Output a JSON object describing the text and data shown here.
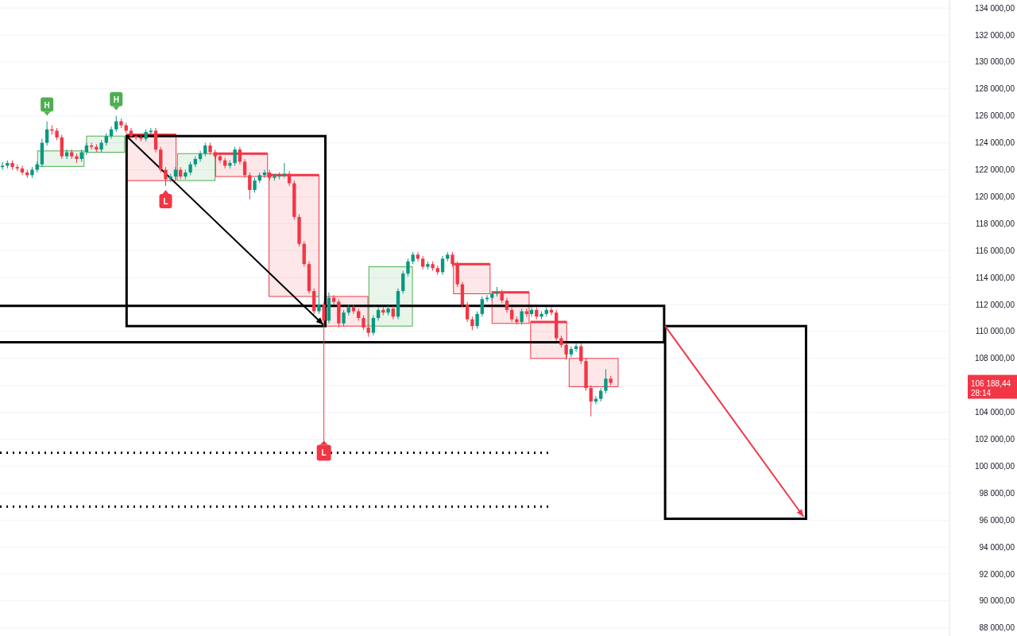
{
  "chart_data": {
    "type": "candlestick",
    "categories": [
      null,
      null,
      null,
      null,
      null,
      null,
      null,
      null,
      null,
      null,
      null,
      null,
      null,
      null,
      null,
      null,
      null,
      null,
      null,
      null,
      null,
      null,
      null,
      null,
      null,
      null,
      null,
      null,
      null,
      null,
      null,
      null,
      null,
      null,
      null,
      null,
      null,
      null,
      null,
      null,
      null,
      null,
      null,
      null,
      null,
      null,
      null,
      null,
      null,
      null,
      null,
      null,
      null,
      null,
      null,
      null,
      null,
      null,
      null,
      null,
      null,
      null,
      null,
      null,
      null,
      null,
      null,
      null,
      null,
      null,
      null,
      null,
      null,
      null,
      null,
      null,
      null,
      null,
      null,
      null,
      null,
      null,
      null,
      null,
      null,
      null,
      null,
      null,
      null,
      null,
      null,
      null,
      null,
      null,
      null,
      null,
      null,
      null,
      null,
      null,
      null,
      null,
      null,
      null,
      null,
      null,
      null,
      null,
      null,
      null,
      null,
      null,
      null,
      null,
      null,
      null,
      null,
      null,
      null,
      null,
      null,
      null,
      null,
      null,
      null,
      null,
      null,
      null,
      null,
      null,
      null,
      null,
      null,
      null,
      null,
      null,
      null,
      null,
      null,
      null,
      null,
      null,
      null,
      null,
      null,
      null,
      null,
      null,
      null,
      null,
      null,
      null,
      null,
      null,
      null,
      null,
      null,
      null,
      null,
      null,
      null,
      null,
      null,
      null,
      null,
      null,
      null,
      null,
      null,
      null,
      null,
      null,
      null,
      null,
      null,
      null,
      null,
      null,
      null,
      null,
      null,
      null,
      null,
      null,
      null,
      null,
      null,
      null,
      null,
      null,
      null,
      null
    ],
    "ohlc": [
      [
        122200,
        122600,
        122000,
        122300
      ],
      [
        122300,
        122700,
        122100,
        122500
      ],
      [
        122500,
        122700,
        122000,
        122200
      ],
      [
        122200,
        122400,
        121900,
        122100
      ],
      [
        122100,
        122300,
        121600,
        121800
      ],
      [
        121800,
        122000,
        121400,
        121600
      ],
      [
        121600,
        122200,
        121400,
        122000
      ],
      [
        122000,
        122600,
        121800,
        122400
      ],
      [
        122400,
        124300,
        122200,
        124000
      ],
      [
        124000,
        125600,
        123800,
        125000
      ],
      [
        125000,
        125300,
        124600,
        124900
      ],
      [
        124900,
        125100,
        124200,
        124400
      ],
      [
        124400,
        124600,
        122800,
        123000
      ],
      [
        123000,
        123500,
        122800,
        123300
      ],
      [
        123300,
        123500,
        122800,
        123000
      ],
      [
        123000,
        123200,
        122500,
        122800
      ],
      [
        122800,
        123500,
        122600,
        123300
      ],
      [
        123300,
        124000,
        123100,
        123800
      ],
      [
        123800,
        124000,
        123500,
        123700
      ],
      [
        123700,
        123900,
        123300,
        123500
      ],
      [
        123500,
        124200,
        123300,
        124000
      ],
      [
        124000,
        124700,
        123800,
        124500
      ],
      [
        124500,
        125200,
        124300,
        125000
      ],
      [
        125000,
        126000,
        124800,
        125600
      ],
      [
        125600,
        125800,
        125100,
        125300
      ],
      [
        125300,
        125500,
        124700,
        124900
      ],
      [
        124900,
        125100,
        124300,
        124500
      ],
      [
        124500,
        124700,
        124200,
        124400
      ],
      [
        124400,
        124600,
        124100,
        124300
      ],
      [
        124300,
        125000,
        124100,
        124800
      ],
      [
        124800,
        125100,
        124600,
        124900
      ],
      [
        124900,
        125100,
        123300,
        123500
      ],
      [
        123500,
        123700,
        121800,
        122000
      ],
      [
        122000,
        122200,
        120800,
        121300
      ],
      [
        121300,
        121700,
        121100,
        121500
      ],
      [
        121500,
        122200,
        121300,
        122000
      ],
      [
        122000,
        122200,
        121300,
        121500
      ],
      [
        121500,
        122000,
        121300,
        121800
      ],
      [
        121800,
        122600,
        121600,
        122400
      ],
      [
        122400,
        123000,
        122200,
        122800
      ],
      [
        122800,
        123400,
        122600,
        123200
      ],
      [
        123200,
        124000,
        123000,
        123800
      ],
      [
        123800,
        124000,
        123100,
        123300
      ],
      [
        123300,
        123500,
        122800,
        123000
      ],
      [
        123000,
        123200,
        122500,
        122700
      ],
      [
        122700,
        122900,
        122100,
        122300
      ],
      [
        122300,
        122700,
        122100,
        122500
      ],
      [
        122500,
        123700,
        122300,
        123500
      ],
      [
        123500,
        123700,
        122400,
        122600
      ],
      [
        122600,
        122800,
        121400,
        121600
      ],
      [
        121600,
        121800,
        119800,
        120500
      ],
      [
        120500,
        121400,
        120300,
        121200
      ],
      [
        121200,
        121800,
        121000,
        121600
      ],
      [
        121600,
        122000,
        121400,
        121800
      ],
      [
        121800,
        122000,
        121200,
        121400
      ],
      [
        121400,
        121700,
        121200,
        121500
      ],
      [
        121500,
        121800,
        121300,
        121600
      ],
      [
        121600,
        122500,
        121400,
        121700
      ],
      [
        121700,
        121900,
        120800,
        121000
      ],
      [
        121000,
        121200,
        118300,
        118500
      ],
      [
        118500,
        118700,
        116300,
        116500
      ],
      [
        116500,
        116700,
        114800,
        115000
      ],
      [
        115000,
        115200,
        112800,
        113000
      ],
      [
        113000,
        113200,
        111300,
        111500
      ],
      [
        111500,
        112900,
        111300,
        112000
      ],
      [
        112000,
        112200,
        110600,
        110800
      ],
      [
        110800,
        112900,
        110600,
        112500
      ],
      [
        112500,
        112700,
        112000,
        112200
      ],
      [
        112200,
        112400,
        110300,
        110600
      ],
      [
        110600,
        111600,
        110400,
        111400
      ],
      [
        111400,
        112000,
        111200,
        111800
      ],
      [
        111800,
        112000,
        111300,
        111500
      ],
      [
        111500,
        111700,
        110800,
        111000
      ],
      [
        111000,
        111200,
        110100,
        110300
      ],
      [
        110300,
        110500,
        109600,
        109900
      ],
      [
        109900,
        111200,
        109700,
        111000
      ],
      [
        111000,
        111800,
        110800,
        111600
      ],
      [
        111600,
        111800,
        111200,
        111400
      ],
      [
        111400,
        111900,
        111200,
        111700
      ],
      [
        111700,
        111900,
        110900,
        111100
      ],
      [
        111100,
        113200,
        110900,
        113000
      ],
      [
        113000,
        114500,
        112800,
        114300
      ],
      [
        114300,
        115400,
        114100,
        115200
      ],
      [
        115200,
        115900,
        115000,
        115700
      ],
      [
        115700,
        115900,
        115200,
        115400
      ],
      [
        115400,
        115600,
        114600,
        114800
      ],
      [
        114800,
        115200,
        114600,
        115000
      ],
      [
        115000,
        115200,
        114500,
        114700
      ],
      [
        114700,
        114900,
        114200,
        114400
      ],
      [
        114400,
        115600,
        114200,
        115400
      ],
      [
        115400,
        115900,
        115200,
        115700
      ],
      [
        115700,
        115900,
        114800,
        115000
      ],
      [
        115000,
        115200,
        113300,
        113500
      ],
      [
        113500,
        113700,
        111800,
        112000
      ],
      [
        112000,
        112200,
        110700,
        110900
      ],
      [
        110900,
        111100,
        110100,
        110400
      ],
      [
        110400,
        111500,
        110200,
        111300
      ],
      [
        111300,
        112600,
        111100,
        112400
      ],
      [
        112400,
        112700,
        112200,
        112500
      ],
      [
        112500,
        113000,
        112300,
        112800
      ],
      [
        112800,
        113300,
        112600,
        112900
      ],
      [
        112900,
        113100,
        112100,
        112300
      ],
      [
        112300,
        112500,
        111400,
        111600
      ],
      [
        111600,
        111800,
        110700,
        110900
      ],
      [
        110900,
        111100,
        110500,
        110700
      ],
      [
        110700,
        111700,
        110500,
        111500
      ],
      [
        111500,
        111700,
        111100,
        111300
      ],
      [
        111300,
        111800,
        111100,
        111600
      ],
      [
        111600,
        111800,
        110900,
        111100
      ],
      [
        111100,
        111500,
        110900,
        111300
      ],
      [
        111300,
        111800,
        111100,
        111600
      ],
      [
        111600,
        111800,
        111200,
        111400
      ],
      [
        111400,
        111600,
        109300,
        109500
      ],
      [
        109500,
        109700,
        108800,
        109000
      ],
      [
        109000,
        109200,
        107900,
        108300
      ],
      [
        108300,
        108900,
        108100,
        108700
      ],
      [
        108700,
        109100,
        108500,
        108900
      ],
      [
        108900,
        109100,
        107600,
        107800
      ],
      [
        107800,
        108000,
        105600,
        105800
      ],
      [
        105800,
        106000,
        103700,
        104800
      ],
      [
        104800,
        105200,
        104600,
        105000
      ],
      [
        105000,
        105800,
        104800,
        105600
      ],
      [
        105600,
        107200,
        105400,
        106500
      ],
      [
        106500,
        106700,
        106000,
        106188.44
      ],
      null,
      null,
      null,
      null,
      null,
      null,
      null,
      null,
      null,
      null,
      null,
      null,
      null,
      null,
      null,
      null,
      null,
      null,
      null,
      null,
      null,
      null,
      null,
      null,
      null,
      null,
      null,
      null,
      null,
      null,
      null,
      null,
      null,
      null,
      null,
      null,
      null,
      null,
      null,
      null,
      null,
      null,
      null,
      null,
      null,
      null,
      null,
      null,
      null,
      null,
      null,
      null,
      null,
      null,
      null,
      null,
      null,
      null,
      null,
      null,
      null,
      null,
      null,
      null,
      null,
      null,
      null,
      null
    ],
    "ylim": [
      87400,
      134600
    ],
    "yticks": [
      {
        "value": 88000,
        "label": "88 000,00"
      },
      {
        "value": 90000,
        "label": "90 000,00"
      },
      {
        "value": 92000,
        "label": "92 000,00"
      },
      {
        "value": 94000,
        "label": "94 000,00"
      },
      {
        "value": 96000,
        "label": "96 000,00"
      },
      {
        "value": 98000,
        "label": "98 000,00"
      },
      {
        "value": 100000,
        "label": "100 000,00"
      },
      {
        "value": 102000,
        "label": "102 000,00"
      },
      {
        "value": 104000,
        "label": "104 000,00"
      },
      {
        "value": 106000,
        "label": null
      },
      {
        "value": 108000,
        "label": "108 000,00"
      },
      {
        "value": 110000,
        "label": "110 000,00"
      },
      {
        "value": 112000,
        "label": "112 000,00"
      },
      {
        "value": 114000,
        "label": "114 000,00"
      },
      {
        "value": 116000,
        "label": "116 000,00"
      },
      {
        "value": 118000,
        "label": "118 000,00"
      },
      {
        "value": 120000,
        "label": "120 000,00"
      },
      {
        "value": 122000,
        "label": "122 000,00"
      },
      {
        "value": 124000,
        "label": "124 000,00"
      },
      {
        "value": 126000,
        "label": "126 000,00"
      },
      {
        "value": 128000,
        "label": "128 000,00"
      },
      {
        "value": 130000,
        "label": "130 000,00"
      },
      {
        "value": 132000,
        "label": "132 000,00"
      },
      {
        "value": 134000,
        "label": "134 000,00"
      }
    ],
    "grid": "y",
    "tick_labels": "y",
    "ref_lines": [
      {
        "axis": "y",
        "value": 101000,
        "color": "#000000",
        "line_style": "dotted"
      },
      {
        "axis": "y",
        "value": 97000,
        "color": "#000000",
        "line_style": "dotted"
      }
    ],
    "annotations": [
      "H",
      "H",
      "L",
      "L",
      "106 188,44",
      "28:14"
    ]
  }
}
